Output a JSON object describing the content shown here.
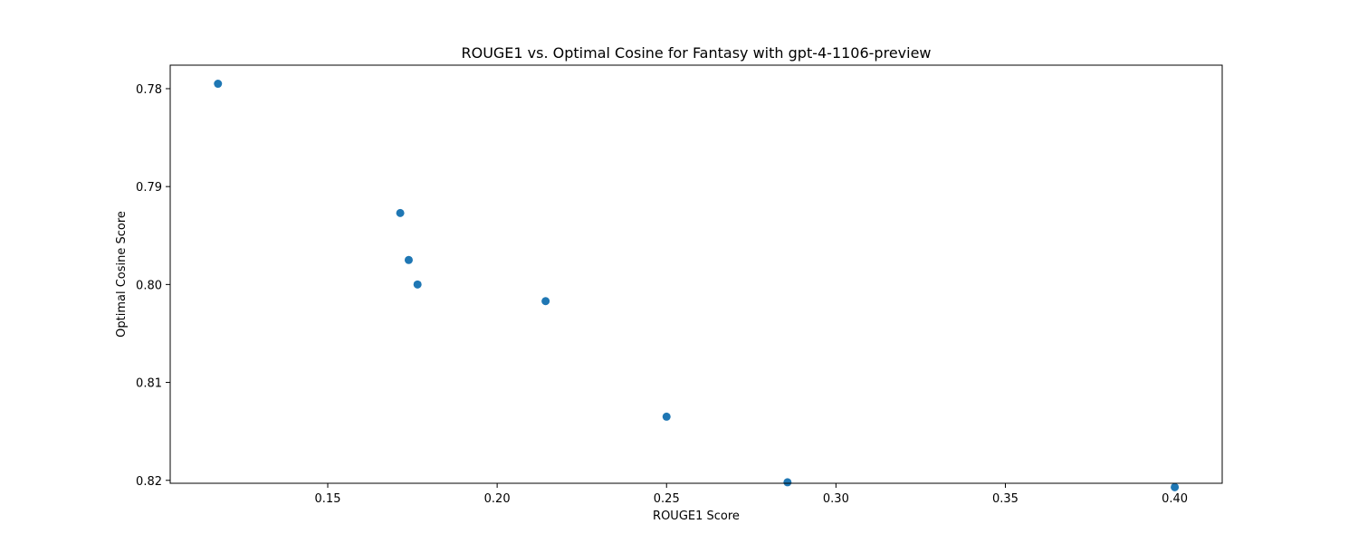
{
  "chart_data": {
    "type": "scatter",
    "title": "ROUGE1 vs. Optimal Cosine for Fantasy with gpt-4-1106-preview",
    "xlabel": "ROUGE1 Score",
    "ylabel": "Optimal Cosine Score",
    "xlim": [
      0.1035,
      0.414
    ],
    "ylim": [
      0.8203,
      0.7776
    ],
    "y_inverted": true,
    "grid": false,
    "legend": "none",
    "x_ticks": [
      0.15,
      0.2,
      0.25,
      0.3,
      0.35,
      0.4
    ],
    "x_tick_labels": [
      "0.15",
      "0.20",
      "0.25",
      "0.30",
      "0.35",
      "0.40"
    ],
    "y_ticks": [
      0.78,
      0.79,
      0.8,
      0.81,
      0.82
    ],
    "y_tick_labels": [
      "0.78",
      "0.79",
      "0.80",
      "0.81",
      "0.82"
    ],
    "series": [
      {
        "color": "#1f77b4",
        "points": [
          {
            "x": 0.1176,
            "y": 0.7795
          },
          {
            "x": 0.1714,
            "y": 0.7927
          },
          {
            "x": 0.1739,
            "y": 0.7975
          },
          {
            "x": 0.1765,
            "y": 0.8
          },
          {
            "x": 0.2143,
            "y": 0.8017
          },
          {
            "x": 0.25,
            "y": 0.8135
          },
          {
            "x": 0.2857,
            "y": 0.8202
          },
          {
            "x": 0.4,
            "y": 0.8207
          }
        ]
      }
    ]
  }
}
